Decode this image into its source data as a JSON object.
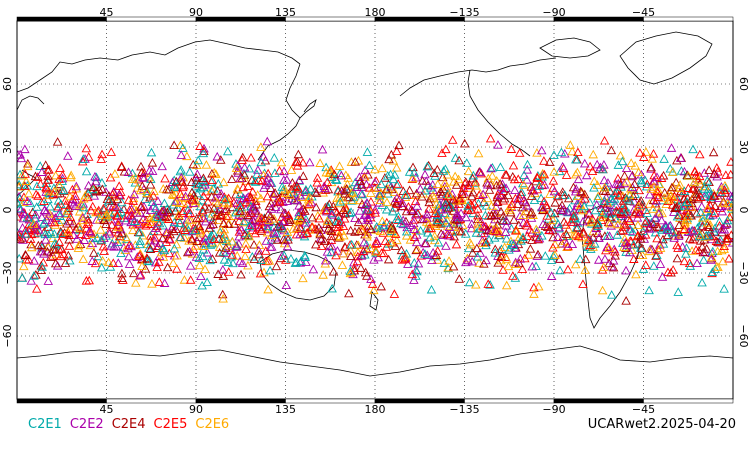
{
  "map": {
    "projection": "cylindrical equidistant, centered 180",
    "lon_ticks_top": [
      "45",
      "90",
      "135",
      "180",
      "−135",
      "−90",
      "−45"
    ],
    "lon_ticks_bottom": [
      "45",
      "90",
      "135",
      "180",
      "−135",
      "−90",
      "−45"
    ],
    "lat_ticks_left": [
      "60",
      "30",
      "0",
      "−30",
      "−60"
    ],
    "lat_ticks_right": [
      "60",
      "30",
      "0",
      "−30",
      "−60"
    ],
    "gridlines": "dotted",
    "marker_shape": "open triangle",
    "occultation_band_lat": [
      -45,
      45
    ]
  },
  "legend": [
    {
      "label": "C2E1",
      "color": "#00aaaa"
    },
    {
      "label": "C2E2",
      "color": "#aa00aa"
    },
    {
      "label": "C2E4",
      "color": "#aa0000"
    },
    {
      "label": "C2E5",
      "color": "#ff0000"
    },
    {
      "label": "C2E6",
      "color": "#ffaa00"
    }
  ],
  "caption": "UCARwet2.2025-04-20"
}
